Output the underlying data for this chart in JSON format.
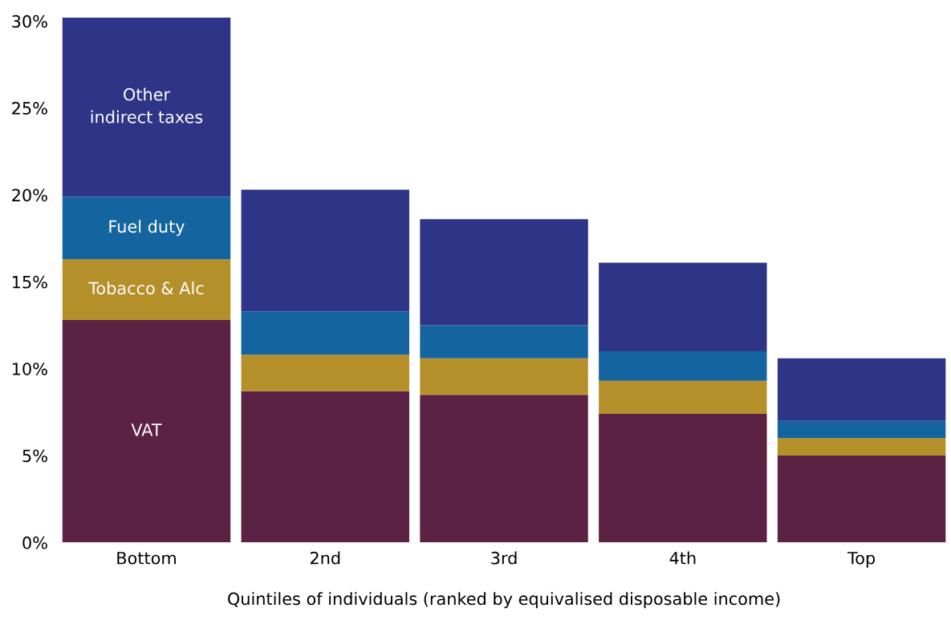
{
  "chart_data": {
    "type": "bar",
    "stacked": true,
    "xlabel": "Quintiles of individuals (ranked by equivalised disposable income)",
    "categories": [
      "Bottom",
      "2nd",
      "3rd",
      "4th",
      "Top"
    ],
    "series": [
      {
        "name": "VAT",
        "color": "#5c2243",
        "values": [
          12.8,
          8.7,
          8.5,
          7.4,
          5.0
        ]
      },
      {
        "name": "Tobacco & Alc",
        "color": "#b58f2a",
        "values": [
          3.5,
          2.1,
          2.1,
          1.9,
          1.0
        ]
      },
      {
        "name": "Fuel duty",
        "color": "#1464a0",
        "values": [
          3.6,
          2.5,
          1.9,
          1.7,
          1.0
        ]
      },
      {
        "name": "Other\nindirect taxes",
        "color": "#2e3586",
        "values": [
          10.3,
          7.0,
          6.1,
          5.1,
          3.6
        ]
      }
    ],
    "ylim": [
      0,
      30.5
    ],
    "yticks": [
      {
        "value": 0,
        "label": "0%"
      },
      {
        "value": 5,
        "label": "5%"
      },
      {
        "value": 10,
        "label": "10%"
      },
      {
        "value": 15,
        "label": "15%"
      },
      {
        "value": 20,
        "label": "20%"
      },
      {
        "value": 25,
        "label": "25%"
      },
      {
        "value": 30,
        "label": "30%"
      }
    ],
    "grid": false,
    "legend": false
  }
}
